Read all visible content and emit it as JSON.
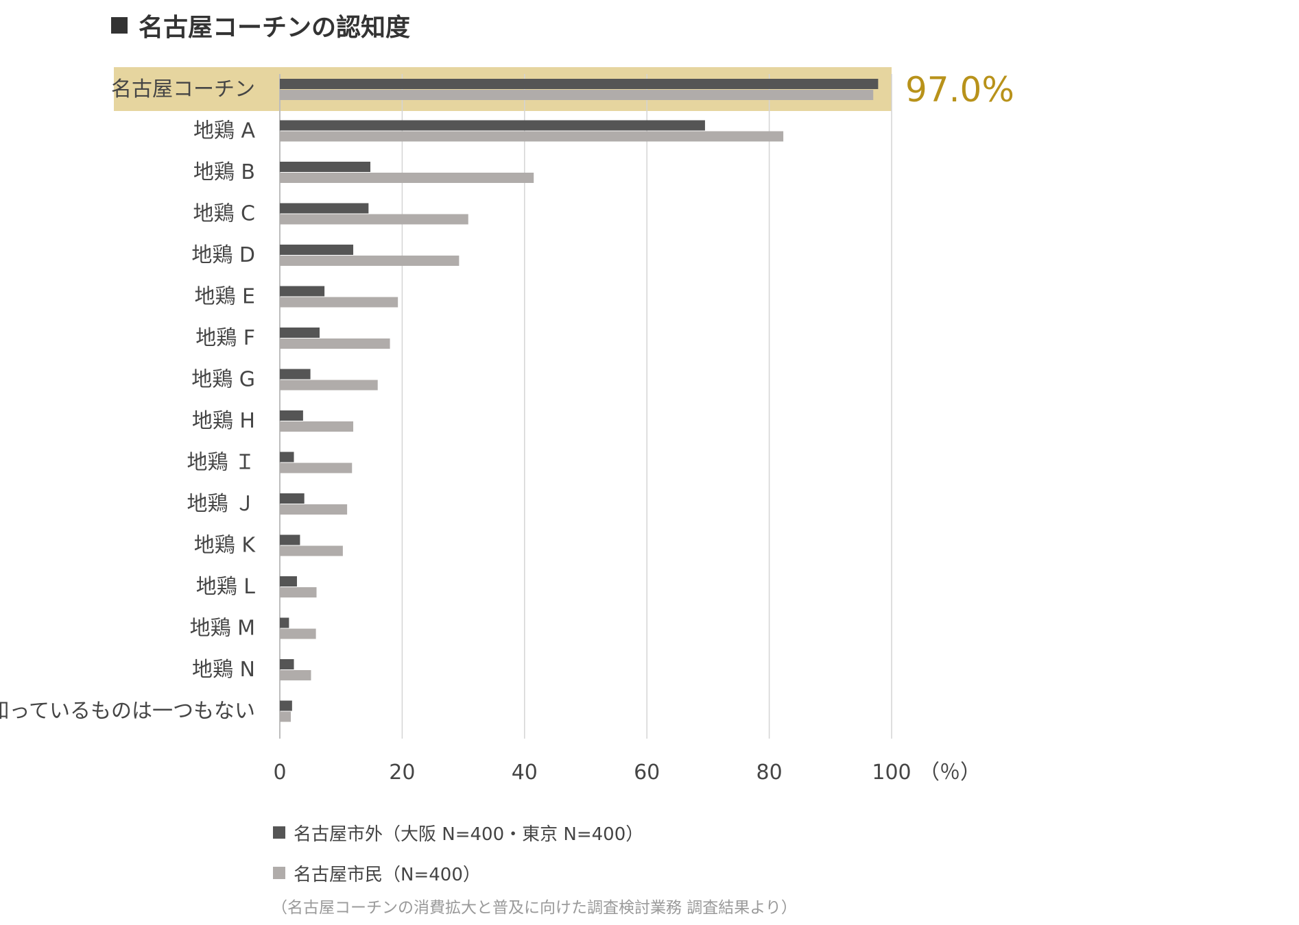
{
  "title": "名古屋コーチンの認知度",
  "colors": {
    "series_outside": "#555555",
    "series_resident": "#b0acaa",
    "highlight_band": "#e6d59f",
    "highlight_text": "#b8921a",
    "grid": "#d4d4d4",
    "text": "#454545"
  },
  "chart_data": {
    "type": "bar",
    "orientation": "horizontal",
    "categories": [
      "名古屋コーチン",
      "地鶏 A",
      "地鶏 B",
      "地鶏 C",
      "地鶏 D",
      "地鶏 E",
      "地鶏 F",
      "地鶏 G",
      "地鶏 H",
      "地鶏 Ｉ",
      "地鶏 Ｊ",
      "地鶏 K",
      "地鶏 L",
      "地鶏 M",
      "地鶏 N",
      "知っているものは一つもない"
    ],
    "series": [
      {
        "name": "名古屋市外（大阪 N=400・東京 N=400）",
        "values": [
          97.8,
          69.5,
          14.8,
          14.5,
          12.0,
          7.3,
          6.5,
          5.0,
          3.8,
          2.3,
          4.0,
          3.3,
          2.8,
          1.5,
          2.3,
          2.0
        ]
      },
      {
        "name": "名古屋市民（N=400）",
        "values": [
          97.0,
          82.3,
          41.5,
          30.8,
          29.3,
          19.3,
          18.0,
          16.0,
          12.0,
          11.8,
          11.0,
          10.3,
          6.0,
          5.9,
          5.1,
          1.8
        ]
      }
    ],
    "xlim": [
      0,
      100
    ],
    "xticks": [
      0,
      20,
      40,
      60,
      80,
      100
    ],
    "xunit": "（％）",
    "grid": true,
    "legend_position": "bottom-left",
    "highlight": {
      "category": "名古屋コーチン",
      "label": "97.0%"
    }
  },
  "source_note": "（名古屋コーチンの消費拡大と普及に向けた調査検討業務 調査結果より）"
}
